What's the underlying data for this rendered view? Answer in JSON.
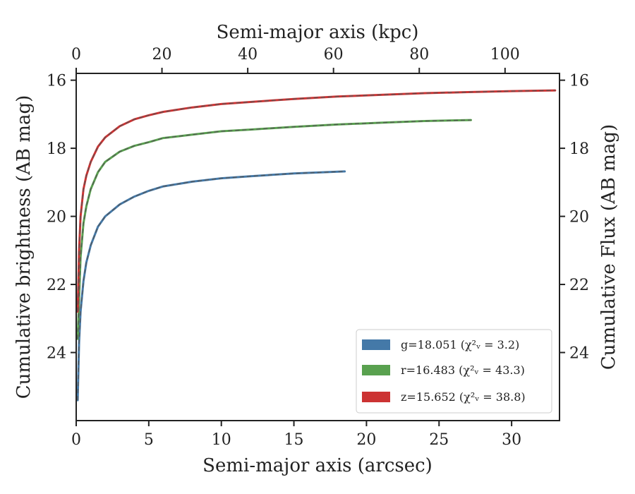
{
  "chart_data": {
    "type": "line",
    "xlabel": "Semi-major axis (arcsec)",
    "x2label": "Semi-major axis (kpc)",
    "ylabel": "Cumulative brightness (AB mag)",
    "y2label": "Cumulative Flux (AB mag)",
    "xlim": [
      0,
      33.3
    ],
    "x2lim": [
      0,
      112.7
    ],
    "ylim": [
      26,
      15.8
    ],
    "y_inverted": true,
    "xticks": [
      0,
      5,
      10,
      15,
      20,
      25,
      30
    ],
    "x2ticks": [
      0,
      20,
      40,
      60,
      80,
      100
    ],
    "yticks": [
      16,
      18,
      20,
      22,
      24
    ],
    "grid": false,
    "legend_position": "lower-right",
    "series": [
      {
        "name": "g=18.051 (χ²ᵥ = 3.2)",
        "band": "g",
        "color": "#4479a8",
        "x": [
          0.1,
          0.2,
          0.3,
          0.5,
          0.7,
          1.0,
          1.5,
          2.0,
          3.0,
          4.0,
          5.0,
          6.0,
          8.0,
          10.0,
          12.0,
          15.0,
          18.5
        ],
        "y": [
          25.4,
          23.7,
          22.8,
          21.9,
          21.35,
          20.85,
          20.3,
          20.0,
          19.65,
          19.42,
          19.25,
          19.12,
          18.98,
          18.88,
          18.82,
          18.74,
          18.68
        ]
      },
      {
        "name": "r=16.483 (χ²ᵥ = 43.3)",
        "band": "r",
        "color": "#59a14f",
        "x": [
          0.1,
          0.2,
          0.3,
          0.5,
          0.7,
          1.0,
          1.5,
          2.0,
          3.0,
          4.0,
          5.0,
          6.0,
          8.0,
          10.0,
          12.0,
          15.0,
          18.0,
          21.0,
          24.0,
          27.2
        ],
        "y": [
          23.6,
          22.4,
          21.2,
          20.2,
          19.7,
          19.2,
          18.7,
          18.4,
          18.1,
          17.93,
          17.82,
          17.7,
          17.6,
          17.5,
          17.45,
          17.37,
          17.3,
          17.25,
          17.2,
          17.17
        ]
      },
      {
        "name": "z=15.652 (χ²ᵥ = 38.8)",
        "band": "z",
        "color": "#cc3333",
        "x": [
          0.1,
          0.2,
          0.3,
          0.5,
          0.7,
          1.0,
          1.5,
          2.0,
          3.0,
          4.0,
          5.0,
          6.0,
          8.0,
          10.0,
          12.0,
          15.0,
          18.0,
          21.0,
          24.0,
          27.0,
          30.0,
          33.0
        ],
        "y": [
          22.8,
          21.0,
          20.0,
          19.2,
          18.8,
          18.4,
          17.95,
          17.68,
          17.35,
          17.15,
          17.03,
          16.93,
          16.8,
          16.7,
          16.64,
          16.55,
          16.48,
          16.43,
          16.38,
          16.35,
          16.32,
          16.3
        ]
      }
    ]
  }
}
